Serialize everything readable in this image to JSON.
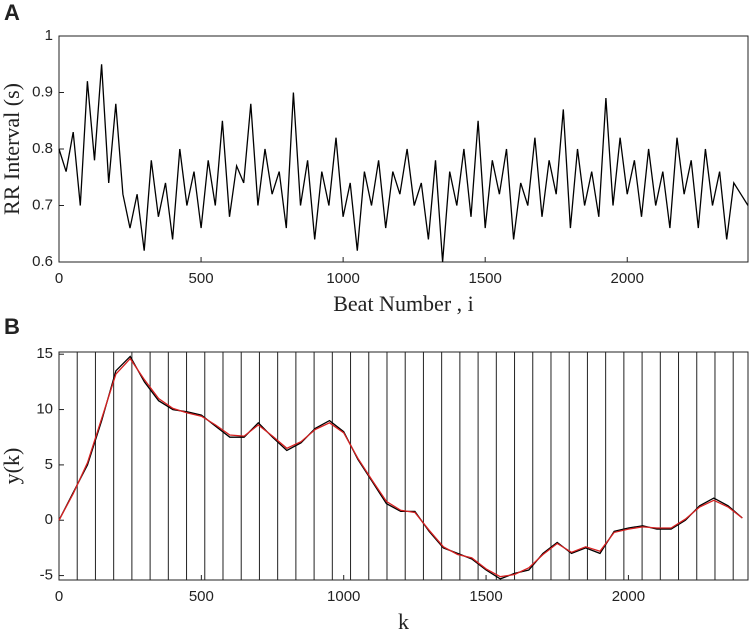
{
  "chart_data": [
    {
      "type": "line",
      "panel_label": "A",
      "ylabel": "RR Interval (s)",
      "xlabel": "Beat Number , i",
      "xlim": [
        0,
        2425
      ],
      "ylim": [
        0.6,
        1
      ],
      "xticks": [
        0,
        500,
        1000,
        1500,
        2000
      ],
      "yticks": [
        0.6,
        0.7,
        0.8,
        0.9,
        1
      ],
      "x": [
        0,
        25,
        50,
        75,
        100,
        125,
        150,
        175,
        200,
        225,
        250,
        275,
        300,
        325,
        350,
        375,
        400,
        425,
        450,
        475,
        500,
        525,
        550,
        575,
        600,
        625,
        650,
        675,
        700,
        725,
        750,
        775,
        800,
        825,
        850,
        875,
        900,
        925,
        950,
        975,
        1000,
        1025,
        1050,
        1075,
        1100,
        1125,
        1150,
        1175,
        1200,
        1225,
        1250,
        1275,
        1300,
        1325,
        1350,
        1375,
        1400,
        1425,
        1450,
        1475,
        1500,
        1525,
        1550,
        1575,
        1600,
        1625,
        1650,
        1675,
        1700,
        1725,
        1750,
        1775,
        1800,
        1825,
        1850,
        1875,
        1900,
        1925,
        1950,
        1975,
        2000,
        2025,
        2050,
        2075,
        2100,
        2125,
        2150,
        2175,
        2200,
        2225,
        2250,
        2275,
        2300,
        2325,
        2350,
        2375,
        2400,
        2425
      ],
      "series": [
        {
          "color": "#000000",
          "values": [
            0.8,
            0.76,
            0.83,
            0.7,
            0.92,
            0.78,
            0.95,
            0.74,
            0.88,
            0.72,
            0.66,
            0.72,
            0.62,
            0.78,
            0.68,
            0.74,
            0.64,
            0.8,
            0.7,
            0.76,
            0.66,
            0.78,
            0.7,
            0.85,
            0.68,
            0.77,
            0.74,
            0.88,
            0.7,
            0.8,
            0.72,
            0.76,
            0.66,
            0.9,
            0.7,
            0.78,
            0.64,
            0.76,
            0.7,
            0.82,
            0.68,
            0.74,
            0.62,
            0.76,
            0.7,
            0.78,
            0.66,
            0.76,
            0.72,
            0.8,
            0.7,
            0.74,
            0.64,
            0.78,
            0.6,
            0.76,
            0.7,
            0.8,
            0.68,
            0.85,
            0.66,
            0.78,
            0.72,
            0.8,
            0.64,
            0.74,
            0.7,
            0.82,
            0.68,
            0.78,
            0.72,
            0.87,
            0.66,
            0.8,
            0.7,
            0.76,
            0.68,
            0.89,
            0.7,
            0.82,
            0.72,
            0.78,
            0.68,
            0.8,
            0.7,
            0.76,
            0.66,
            0.82,
            0.72,
            0.78,
            0.66,
            0.8,
            0.7,
            0.76,
            0.64,
            0.74,
            0.72,
            0.7
          ]
        }
      ]
    },
    {
      "type": "line",
      "panel_label": "B",
      "ylabel": "y(k)",
      "xlabel": "k",
      "xlim": [
        0,
        2420
      ],
      "ylim": [
        -5.4,
        15.2
      ],
      "xticks": [
        0,
        500,
        1000,
        1500,
        2000
      ],
      "yticks": [
        -5,
        0,
        5,
        10,
        15
      ],
      "vlines": [
        64,
        128,
        192,
        256,
        320,
        384,
        448,
        512,
        576,
        640,
        704,
        768,
        832,
        896,
        960,
        1024,
        1088,
        1152,
        1216,
        1280,
        1344,
        1408,
        1472,
        1536,
        1600,
        1664,
        1728,
        1792,
        1856,
        1920,
        1984,
        2048,
        2112,
        2176,
        2240,
        2304,
        2368
      ],
      "x": [
        0,
        50,
        100,
        150,
        200,
        250,
        300,
        350,
        400,
        450,
        500,
        550,
        600,
        650,
        700,
        750,
        800,
        850,
        900,
        950,
        1000,
        1050,
        1100,
        1150,
        1200,
        1250,
        1300,
        1350,
        1400,
        1450,
        1500,
        1550,
        1600,
        1650,
        1700,
        1750,
        1800,
        1850,
        1900,
        1950,
        2000,
        2050,
        2100,
        2150,
        2200,
        2250,
        2300,
        2350,
        2400
      ],
      "series": [
        {
          "color": "#000000",
          "values": [
            0,
            2.5,
            5,
            9,
            13.5,
            14.8,
            12.5,
            10.8,
            10,
            9.8,
            9.5,
            8.5,
            7.5,
            7.5,
            8.8,
            7.5,
            6.3,
            7,
            8.3,
            9,
            8,
            5.5,
            3.5,
            1.5,
            0.8,
            0.8,
            -1,
            -2.5,
            -3,
            -3.5,
            -4.5,
            -5.3,
            -4.8,
            -4.5,
            -3,
            -2,
            -3,
            -2.5,
            -3,
            -1,
            -0.7,
            -0.5,
            -0.8,
            -0.8,
            0,
            1.3,
            2,
            1.3,
            0.2
          ]
        },
        {
          "color": "#d62020",
          "values": [
            0,
            2.4,
            5.2,
            9.2,
            13.2,
            14.6,
            12.7,
            11,
            10.1,
            9.7,
            9.4,
            8.6,
            7.7,
            7.6,
            8.6,
            7.6,
            6.5,
            7.1,
            8.2,
            8.8,
            7.9,
            5.6,
            3.6,
            1.7,
            0.9,
            0.7,
            -0.9,
            -2.4,
            -3.1,
            -3.4,
            -4.4,
            -5.1,
            -4.9,
            -4.3,
            -3.1,
            -2.1,
            -2.9,
            -2.4,
            -2.8,
            -1.1,
            -0.8,
            -0.6,
            -0.7,
            -0.7,
            0.1,
            1.2,
            1.8,
            1.2,
            0.2
          ]
        }
      ]
    }
  ]
}
